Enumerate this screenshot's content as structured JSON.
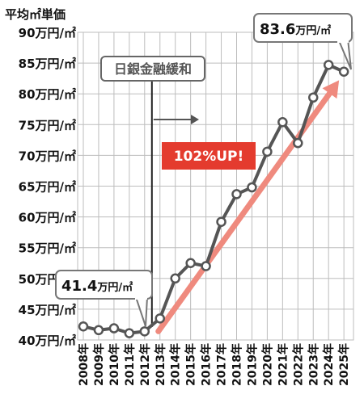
{
  "chart_data": {
    "type": "line",
    "title": "平均㎡単価",
    "x": [
      "2008年",
      "2009年",
      "2010年",
      "2011年",
      "2012年",
      "2013年",
      "2014年",
      "2015年",
      "2016年",
      "2017年",
      "2018年",
      "2019年",
      "2020年",
      "2021年",
      "2022年",
      "2023年",
      "2024年",
      "2025年"
    ],
    "values": [
      42.2,
      41.6,
      41.9,
      41.1,
      41.4,
      43.5,
      50.0,
      52.5,
      52.0,
      59.2,
      63.7,
      64.8,
      70.6,
      75.4,
      72.0,
      79.4,
      84.7,
      83.6
    ],
    "ylim": [
      40,
      90
    ],
    "yticks": [
      40,
      45,
      50,
      55,
      60,
      65,
      70,
      75,
      80,
      85,
      90
    ],
    "ytick_labels": [
      "40万円/㎡",
      "45万円/㎡",
      "50万円/㎡",
      "55万円/㎡",
      "60万円/㎡",
      "65万円/㎡",
      "70万円/㎡",
      "75万円/㎡",
      "80万円/㎡",
      "85万円/㎡",
      "90万円/㎡"
    ],
    "grid": true,
    "annotations": {
      "start_value": "41.4",
      "start_unit": "万円/㎡",
      "end_value": "83.6",
      "end_unit": "万円/㎡",
      "event_label": "日銀金融緩和",
      "event_year": "2012年",
      "growth_label": "102%UP!"
    },
    "colors": {
      "line": "#555555",
      "marker_fill": "#ffffff",
      "trend_arrow": "#ef8a7e",
      "growth_badge": "#e43b2e",
      "event_line": "#222222"
    }
  }
}
